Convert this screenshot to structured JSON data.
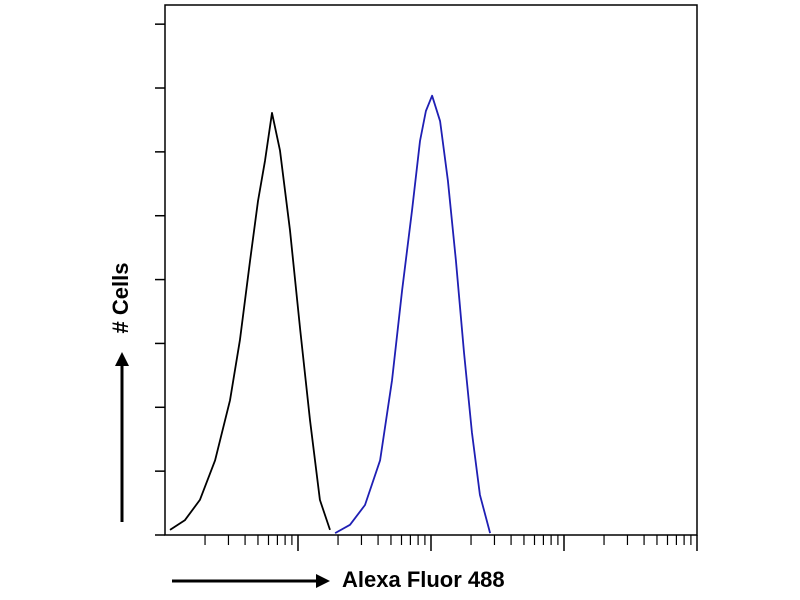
{
  "chart_data": {
    "type": "line",
    "y_label": "# Cells",
    "x_label": "Alexa Fluor 488",
    "xscale": "log",
    "xlim": [
      1,
      10000
    ],
    "xticks": [
      10,
      100,
      1000,
      10000
    ],
    "xminorticks": [
      2,
      3,
      4,
      5,
      6,
      7,
      8,
      9,
      20,
      30,
      40,
      50,
      60,
      70,
      80,
      90,
      200,
      300,
      400,
      500,
      600,
      700,
      800,
      900,
      2000,
      3000,
      4000,
      5000,
      6000,
      7000,
      8000,
      9000
    ],
    "ylim": [
      0,
      8.3
    ],
    "yticks": [
      0,
      1,
      2,
      3,
      4,
      5,
      6,
      7,
      8
    ],
    "series": [
      {
        "color": "#000000",
        "x": [
          1.09,
          1.41,
          1.83,
          2.38,
          3.08,
          3.66,
          4.36,
          5.0,
          5.65,
          6.38,
          7.32,
          8.71,
          10.4,
          12.3,
          14.6,
          17.4
        ],
        "values": [
          0.08,
          0.23,
          0.55,
          1.17,
          2.11,
          3.05,
          4.3,
          5.23,
          5.86,
          6.61,
          6.02,
          4.77,
          3.2,
          1.8,
          0.55,
          0.08
        ]
      },
      {
        "color": "#1f1fb4",
        "x": [
          19.0,
          24.6,
          31.9,
          41.4,
          50.9,
          60.6,
          72.0,
          82.7,
          91.6,
          102,
          117,
          134,
          154,
          177,
          203,
          233,
          278
        ],
        "values": [
          0.03,
          0.16,
          0.47,
          1.17,
          2.42,
          3.83,
          5.08,
          6.17,
          6.64,
          6.88,
          6.48,
          5.55,
          4.3,
          2.86,
          1.61,
          0.63,
          0.03
        ]
      }
    ]
  }
}
